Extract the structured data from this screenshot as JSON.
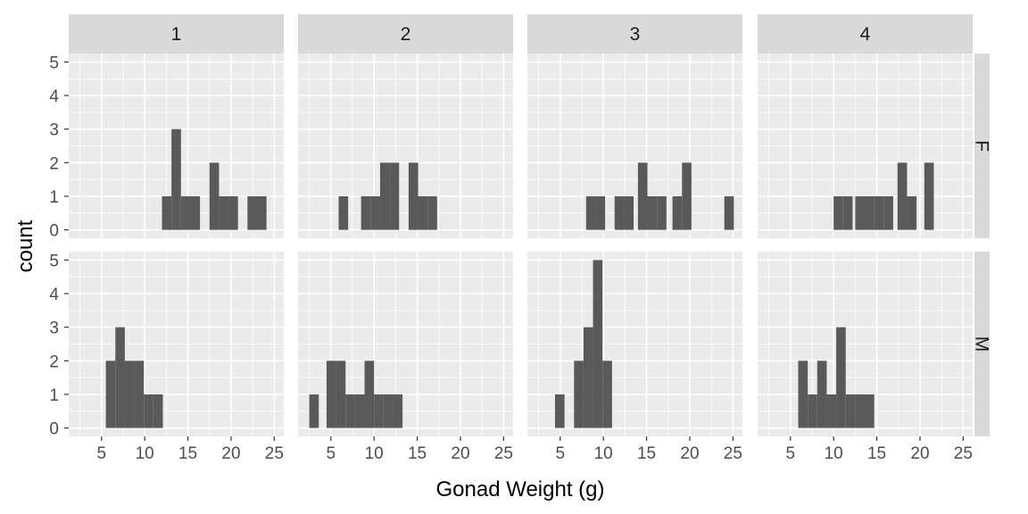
{
  "chart_data": {
    "type": "bar",
    "subtype": "faceted-histogram",
    "title": "",
    "xlabel": "Gonad Weight (g)",
    "ylabel": "count",
    "xlim": [
      1.2,
      26.1
    ],
    "ylim": [
      -0.25,
      5.25
    ],
    "x_ticks": [
      5,
      10,
      15,
      20,
      25
    ],
    "y_ticks": [
      0,
      1,
      2,
      3,
      4,
      5
    ],
    "bin_width": 1.1,
    "col_facets": [
      "1",
      "2",
      "3",
      "4"
    ],
    "row_facets": [
      "F",
      "M"
    ],
    "grid": true,
    "colors": {
      "bar": "#595959",
      "panel": "#ebebeb",
      "grid": "#ffffff",
      "strip": "#d9d9d9"
    },
    "panels": [
      {
        "col": "1",
        "row": "F",
        "bins": [
          [
            12.0,
            1
          ],
          [
            13.1,
            3
          ],
          [
            14.2,
            1
          ],
          [
            15.3,
            1
          ],
          [
            16.4,
            0
          ],
          [
            17.5,
            2
          ],
          [
            18.6,
            1
          ],
          [
            19.7,
            1
          ],
          [
            20.8,
            0
          ],
          [
            21.9,
            1
          ],
          [
            23.0,
            1
          ]
        ]
      },
      {
        "col": "2",
        "row": "F",
        "bins": [
          [
            5.9,
            1
          ],
          [
            8.5,
            1
          ],
          [
            9.6,
            1
          ],
          [
            10.7,
            2
          ],
          [
            11.8,
            2
          ],
          [
            12.9,
            0
          ],
          [
            14.0,
            2
          ],
          [
            15.1,
            1
          ],
          [
            16.2,
            1
          ]
        ]
      },
      {
        "col": "3",
        "row": "F",
        "bins": [
          [
            8.0,
            1
          ],
          [
            9.1,
            1
          ],
          [
            10.2,
            0
          ],
          [
            11.3,
            1
          ],
          [
            12.4,
            1
          ],
          [
            14.0,
            2
          ],
          [
            15.1,
            1
          ],
          [
            16.2,
            1
          ],
          [
            18.0,
            1
          ],
          [
            19.1,
            2
          ],
          [
            24.0,
            1
          ]
        ]
      },
      {
        "col": "4",
        "row": "F",
        "bins": [
          [
            10.0,
            1
          ],
          [
            11.1,
            1
          ],
          [
            12.5,
            1
          ],
          [
            13.6,
            1
          ],
          [
            14.7,
            1
          ],
          [
            15.8,
            1
          ],
          [
            17.4,
            2
          ],
          [
            18.5,
            1
          ],
          [
            20.5,
            2
          ]
        ]
      },
      {
        "col": "1",
        "row": "M",
        "bins": [
          [
            5.5,
            2
          ],
          [
            6.6,
            3
          ],
          [
            7.7,
            2
          ],
          [
            8.8,
            2
          ],
          [
            9.9,
            1
          ],
          [
            11.0,
            1
          ]
        ]
      },
      {
        "col": "2",
        "row": "M",
        "bins": [
          [
            2.5,
            1
          ],
          [
            4.5,
            2
          ],
          [
            5.6,
            2
          ],
          [
            6.7,
            1
          ],
          [
            7.8,
            1
          ],
          [
            8.9,
            2
          ],
          [
            10.0,
            1
          ],
          [
            11.1,
            1
          ],
          [
            12.2,
            1
          ]
        ]
      },
      {
        "col": "3",
        "row": "M",
        "bins": [
          [
            4.4,
            1
          ],
          [
            6.6,
            2
          ],
          [
            7.7,
            3
          ],
          [
            8.8,
            5
          ],
          [
            9.9,
            2
          ]
        ]
      },
      {
        "col": "4",
        "row": "M",
        "bins": [
          [
            5.9,
            2
          ],
          [
            7.0,
            1
          ],
          [
            8.1,
            2
          ],
          [
            9.2,
            1
          ],
          [
            10.3,
            3
          ],
          [
            11.4,
            1
          ],
          [
            12.5,
            1
          ],
          [
            13.6,
            1
          ]
        ]
      }
    ]
  }
}
